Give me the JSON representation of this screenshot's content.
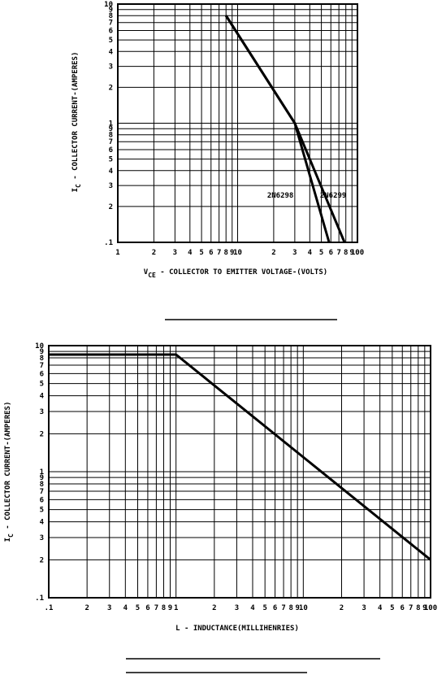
{
  "chart_data": [
    {
      "type": "line",
      "xscale": "log",
      "yscale": "log",
      "grid": true,
      "xlabel": [
        "V",
        "CE",
        " - COLLECTOR TO EMITTER VOLTAGE-(VOLTS)"
      ],
      "ylabel": [
        "I",
        "C",
        " - COLLECTOR CURRENT-(AMPERES)"
      ],
      "xlim": [
        1,
        100
      ],
      "ylim": [
        0.1,
        10
      ],
      "xticks": [
        1,
        2,
        3,
        4,
        5,
        6,
        7,
        8,
        9,
        10,
        {
          "value": 20,
          "label": "2"
        },
        {
          "value": 30,
          "label": "3"
        },
        {
          "value": 40,
          "label": "4"
        },
        {
          "value": 50,
          "label": "5"
        },
        {
          "value": 60,
          "label": "6"
        },
        {
          "value": 70,
          "label": "7"
        },
        {
          "value": 80,
          "label": "8"
        },
        {
          "value": 90,
          "label": "9"
        },
        100
      ],
      "yticks": [
        {
          "value": 0.1,
          "label": ".1"
        },
        {
          "value": 0.2,
          "label": "2"
        },
        {
          "value": 0.3,
          "label": "3"
        },
        {
          "value": 0.4,
          "label": "4"
        },
        {
          "value": 0.5,
          "label": "5"
        },
        {
          "value": 0.6,
          "label": "6"
        },
        {
          "value": 0.7,
          "label": "7"
        },
        {
          "value": 0.8,
          "label": "8"
        },
        {
          "value": 0.9,
          "label": "9"
        },
        1,
        2,
        3,
        4,
        5,
        6,
        7,
        8,
        9,
        10
      ],
      "series": [
        {
          "name": "2N6298",
          "color": "#000000",
          "x": [
            8,
            30,
            58
          ],
          "values": [
            8,
            1,
            0.1
          ]
        },
        {
          "name": "2N6299",
          "color": "#000000",
          "x": [
            8,
            30,
            78
          ],
          "values": [
            8,
            1,
            0.1
          ]
        }
      ]
    },
    {
      "type": "line",
      "xscale": "log",
      "yscale": "log",
      "grid": true,
      "color": "#000000",
      "xlabel": "L - INDUCTANCE(MILLIHENRIES)",
      "ylabel": [
        "I",
        "C",
        " - COLLECTOR CURRENT-(AMPERES)"
      ],
      "xlim": [
        0.1,
        100
      ],
      "ylim": [
        0.1,
        10
      ],
      "xticks": [
        {
          "value": 0.1,
          "label": ".1"
        },
        {
          "value": 0.2,
          "label": "2"
        },
        {
          "value": 0.3,
          "label": "3"
        },
        {
          "value": 0.4,
          "label": "4"
        },
        {
          "value": 0.5,
          "label": "5"
        },
        {
          "value": 0.6,
          "label": "6"
        },
        {
          "value": 0.7,
          "label": "7"
        },
        {
          "value": 0.8,
          "label": "8"
        },
        {
          "value": 0.9,
          "label": "9"
        },
        1,
        2,
        3,
        4,
        5,
        6,
        7,
        8,
        9,
        10,
        {
          "value": 20,
          "label": "2"
        },
        {
          "value": 30,
          "label": "3"
        },
        {
          "value": 40,
          "label": "4"
        },
        {
          "value": 50,
          "label": "5"
        },
        {
          "value": 60,
          "label": "6"
        },
        {
          "value": 70,
          "label": "7"
        },
        {
          "value": 80,
          "label": "8"
        },
        {
          "value": 90,
          "label": "9"
        },
        100
      ],
      "yticks": [
        {
          "value": 0.1,
          "label": ".1"
        },
        {
          "value": 0.2,
          "label": "2"
        },
        {
          "value": 0.3,
          "label": "3"
        },
        {
          "value": 0.4,
          "label": "4"
        },
        {
          "value": 0.5,
          "label": "5"
        },
        {
          "value": 0.6,
          "label": "6"
        },
        {
          "value": 0.7,
          "label": "7"
        },
        {
          "value": 0.8,
          "label": "8"
        },
        {
          "value": 0.9,
          "label": "9"
        },
        1,
        2,
        3,
        4,
        5,
        6,
        7,
        8,
        9,
        10
      ],
      "x": [
        0.1,
        1,
        100
      ],
      "values": [
        8.5,
        8.5,
        0.2
      ]
    }
  ]
}
